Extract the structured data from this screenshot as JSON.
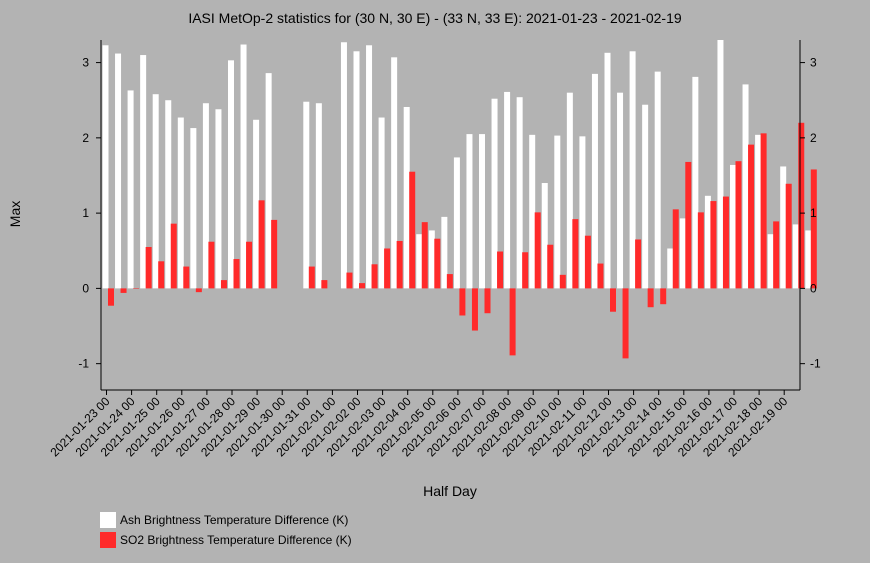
{
  "chart_data": {
    "type": "bar",
    "title": "IASI MetOp-2 statistics for (30 N, 30 E) - (33 N, 33 E): 2021-01-23 - 2021-02-19",
    "xlabel": "Half Day",
    "ylabel": "Max",
    "ylim": [
      -1.35,
      3.3
    ],
    "yticks": [
      -1,
      0,
      1,
      2,
      3
    ],
    "grid": false,
    "legend_position": "bottom-left",
    "x_tick_labels": [
      "2021-01-23 00",
      "2021-01-24 00",
      "2021-01-25 00",
      "2021-01-26 00",
      "2021-01-27 00",
      "2021-01-28 00",
      "2021-01-29 00",
      "2021-01-30 00",
      "2021-01-31 00",
      "2021-02-01 00",
      "2021-02-02 00",
      "2021-02-03 00",
      "2021-02-04 00",
      "2021-02-05 00",
      "2021-02-06 00",
      "2021-02-07 00",
      "2021-02-08 00",
      "2021-02-09 00",
      "2021-02-10 00",
      "2021-02-11 00",
      "2021-02-12 00",
      "2021-02-13 00",
      "2021-02-14 00",
      "2021-02-15 00",
      "2021-02-16 00",
      "2021-02-17 00",
      "2021-02-18 00",
      "2021-02-19 00"
    ],
    "series": [
      {
        "name": "Ash Brightness Temperature Difference (K)",
        "color": "#ffffff",
        "values": [
          3.23,
          3.12,
          2.63,
          3.1,
          2.58,
          2.5,
          2.27,
          2.13,
          2.46,
          2.38,
          3.03,
          3.24,
          2.24,
          2.86,
          null,
          null,
          2.48,
          2.46,
          null,
          3.27,
          3.15,
          3.23,
          2.27,
          3.07,
          2.41,
          0.72,
          0.77,
          0.95,
          1.74,
          2.05,
          2.05,
          2.52,
          2.61,
          2.54,
          2.04,
          1.4,
          2.03,
          2.6,
          2.02,
          2.85,
          3.13,
          2.6,
          3.15,
          2.44,
          2.88,
          0.53,
          0.93,
          2.81,
          1.23,
          3.3,
          1.64,
          2.71,
          2.04,
          0.72,
          1.62,
          0.85,
          0.77
        ]
      },
      {
        "name": "SO2 Brightness Temperature Difference (K)",
        "color": "#ff2a2a",
        "values": [
          -0.23,
          -0.06,
          0.0,
          0.55,
          0.36,
          0.86,
          0.29,
          -0.05,
          0.62,
          0.11,
          0.39,
          0.62,
          1.17,
          0.91,
          null,
          null,
          0.29,
          0.11,
          null,
          0.21,
          0.07,
          0.32,
          0.53,
          0.63,
          1.55,
          0.88,
          0.66,
          0.19,
          -0.36,
          -0.56,
          -0.33,
          0.49,
          -0.89,
          0.48,
          1.01,
          0.58,
          0.18,
          0.92,
          0.7,
          0.33,
          -0.31,
          -0.93,
          0.65,
          -0.25,
          -0.21,
          1.05,
          1.68,
          1.01,
          1.16,
          1.22,
          1.69,
          1.91,
          2.06,
          0.89,
          1.39,
          2.2,
          1.58
        ]
      }
    ]
  }
}
